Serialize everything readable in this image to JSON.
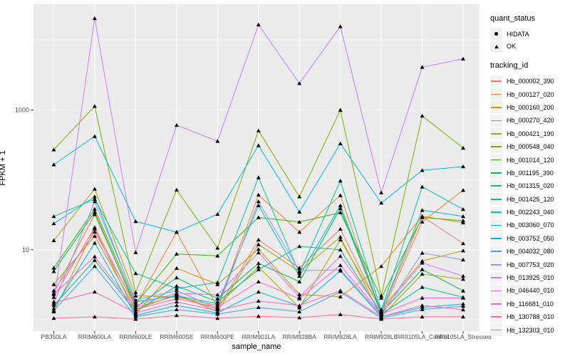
{
  "chart_data": {
    "type": "line",
    "title": "",
    "xlabel": "sample_name",
    "ylabel": "FPKM + 1",
    "y_scale": "log10",
    "y_axis_ticks": [
      10,
      1000
    ],
    "y_axis_minor": [
      1,
      100,
      10000
    ],
    "grid": true,
    "legend_position": "right",
    "default_quant_status": "OK",
    "x_categories": [
      "PB350LA",
      "RRIM600LA",
      "RRIM600LE",
      "RRIM600SE",
      "RRIM600PE",
      "RRIM901LA",
      "RRIM928BA",
      "RRIM928LA",
      "RRIM928LE",
      "RRII105LA_Control",
      "RRII105LA_Stressed"
    ],
    "series": [
      {
        "tracking_id": "Hb_000002_390",
        "color": "#F8766D",
        "values": [
          2.1,
          20.9,
          1.5,
          2.2,
          1.4,
          13.9,
          5.5,
          19.8,
          1.3,
          30,
          12.3
        ]
      },
      {
        "tracking_id": "Hb_000127_020",
        "color": "#EA8331",
        "values": [
          2.4,
          32,
          1.6,
          17.9,
          1.5,
          61,
          17.9,
          60,
          1.2,
          25.1,
          71
        ]
      },
      {
        "tracking_id": "Hb_000160_200",
        "color": "#D89000",
        "values": [
          1.3,
          20,
          1.2,
          5.45,
          3.2,
          10.2,
          2.3,
          2.13,
          5.8,
          30.3,
          24.4
        ]
      },
      {
        "tracking_id": "Hb_000270_420",
        "color": "#C09B00",
        "values": [
          13.6,
          74,
          2.2,
          2.1,
          1.6,
          5.7,
          1.48,
          13.9,
          1.4,
          6.9,
          9.7
        ]
      },
      {
        "tracking_id": "Hb_000421_190",
        "color": "#A3A500",
        "values": [
          3.2,
          15.7,
          1.4,
          2.3,
          1.3,
          11.9,
          4.9,
          15.2,
          1.1,
          4.5,
          3.8
        ]
      },
      {
        "tracking_id": "Hb_000548_040",
        "color": "#7CAE00",
        "values": [
          270,
          1130,
          2.45,
          72,
          10.6,
          505,
          57.5,
          1000,
          2.2,
          822,
          286
        ]
      },
      {
        "tracking_id": "Hb_001014_120",
        "color": "#39B600",
        "values": [
          5.5,
          38.3,
          1.7,
          8.7,
          8.2,
          29,
          25,
          34,
          2.05,
          29,
          26
        ]
      },
      {
        "tracking_id": "Hb_001195_390",
        "color": "#00BB4E",
        "values": [
          4.9,
          34.6,
          1.5,
          4.0,
          2.0,
          6.4,
          3.5,
          39,
          1.25,
          5.24,
          2.59
        ]
      },
      {
        "tracking_id": "Hb_001315_020",
        "color": "#00C088",
        "values": [
          1.6,
          7.1,
          1.3,
          3.03,
          1.8,
          5.2,
          11.2,
          10,
          1.2,
          2.92,
          2.1
        ]
      },
      {
        "tracking_id": "Hb_001425_120",
        "color": "#00C1AB",
        "values": [
          30,
          53,
          4.6,
          2.8,
          3.4,
          108,
          4.6,
          97,
          1.35,
          79.5,
          38
        ]
      },
      {
        "tracking_id": "Hb_002243_040",
        "color": "#00BFC4",
        "values": [
          23.7,
          57.5,
          1.8,
          2.2,
          1.7,
          43,
          4.2,
          43,
          1.3,
          36.8,
          30
        ]
      },
      {
        "tracking_id": "Hb_003060_070",
        "color": "#00BAE0",
        "values": [
          165,
          420,
          25.5,
          17.9,
          32.3,
          310,
          34.8,
          330,
          46.8,
          137,
          155
        ]
      },
      {
        "tracking_id": "Hb_003752_050",
        "color": "#00B0F6",
        "values": [
          1.45,
          12.5,
          1.15,
          1.6,
          1.25,
          2.5,
          1.56,
          5.0,
          1.1,
          1.5,
          1.68
        ]
      },
      {
        "tracking_id": "Hb_004032_080",
        "color": "#35A2FF",
        "values": [
          1.35,
          5.8,
          1.1,
          1.4,
          1.2,
          1.5,
          1.3,
          2.5,
          1.05,
          1.4,
          1.56
        ]
      },
      {
        "tracking_id": "Hb_007753_020",
        "color": "#9590FF",
        "values": [
          1.7,
          49,
          1.9,
          2.6,
          1.45,
          49,
          5.0,
          5.2,
          1.15,
          9.0,
          7.2
        ]
      },
      {
        "tracking_id": "Hb_013925_010",
        "color": "#C77CFF",
        "values": [
          1.8,
          20400,
          9.2,
          605,
          357,
          16600,
          2400,
          15600,
          65.5,
          4090,
          5380
        ]
      },
      {
        "tracking_id": "Hb_046440_010",
        "color": "#E76BF3",
        "values": [
          2.6,
          18,
          1.6,
          2.4,
          2.27,
          9.1,
          2.1,
          8.1,
          1.3,
          6.5,
          4.2
        ]
      },
      {
        "tracking_id": "Hb_116681_010",
        "color": "#FA62DB",
        "values": [
          2.3,
          8.0,
          1.4,
          2.0,
          1.5,
          3.5,
          2.0,
          6.0,
          1.2,
          2.05,
          2.05
        ]
      },
      {
        "tracking_id": "Hb_130788_010",
        "color": "#FF62BC",
        "values": [
          1.75,
          2.5,
          1.25,
          1.8,
          1.35,
          1.85,
          1.6,
          2.6,
          1.1,
          1.6,
          1.39
        ]
      },
      {
        "tracking_id": "Hb_132303_010",
        "color": "#FF6A98",
        "values": [
          1.05,
          1.1,
          1.02,
          1.15,
          1.05,
          1.12,
          1.07,
          1.19,
          1.02,
          1.1,
          1.1
        ]
      }
    ],
    "hidata_points": [
      {
        "series": "Hb_007753_020",
        "x": "RRIM600LE"
      },
      {
        "series": "Hb_130788_010",
        "x": "PB350LA"
      },
      {
        "series": "Hb_130788_010",
        "x": "RRIM600PE"
      },
      {
        "series": "Hb_003752_050",
        "x": "RRIM928LE"
      }
    ]
  },
  "legend": {
    "quant_status": {
      "title": "quant_status",
      "items": [
        {
          "label": "HIDATA",
          "marker": "circle"
        },
        {
          "label": "OK",
          "marker": "triangle"
        }
      ]
    },
    "tracking_id": {
      "title": "tracking_id"
    }
  },
  "colors": {
    "panel_background": "#EBEBEB",
    "gridline": "#FFFFFF",
    "axis_text": "#4D4D4D",
    "axis_title": "#000000",
    "point_marker": "#000000",
    "legend_key_background": "#F2F2F2"
  }
}
